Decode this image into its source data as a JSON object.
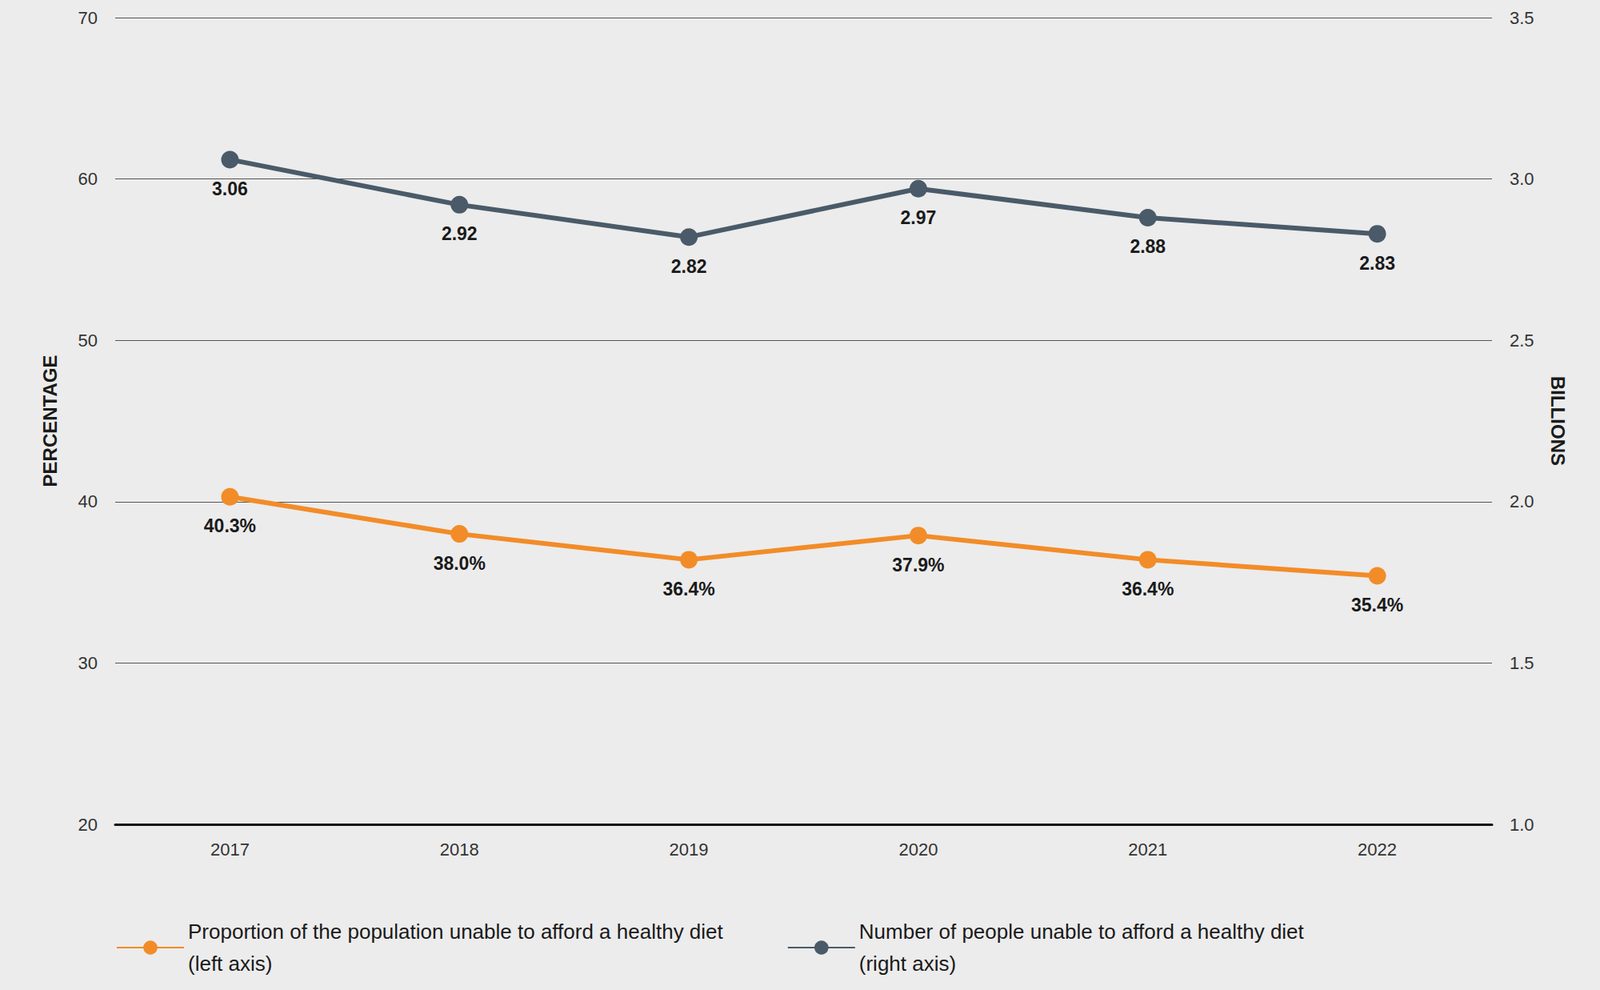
{
  "chart_data": {
    "type": "line",
    "categories": [
      "2017",
      "2018",
      "2019",
      "2020",
      "2021",
      "2022"
    ],
    "y_label": "PERCENTAGE",
    "y2_label": "BILLIONS",
    "ylim": [
      20,
      70
    ],
    "yticks": [
      20,
      30,
      40,
      50,
      60,
      70
    ],
    "y2lim": [
      1.0,
      3.5
    ],
    "y2ticks": [
      {
        "value": 1,
        "label": "1.0"
      },
      1.5,
      {
        "value": 2,
        "label": "2.0"
      },
      2.5,
      {
        "value": 3,
        "label": "3.0"
      },
      3.5
    ],
    "grid": true,
    "legend": "bottom",
    "data_labels": true,
    "series": [
      {
        "name": "Proportion of the population unable to afford a healthy diet\n(left axis)",
        "color": "#f28c28",
        "marker": "circle",
        "values": [
          40.3,
          38.0,
          36.4,
          37.9,
          36.4,
          35.4
        ],
        "value_labels": [
          "40.3%",
          "38.0%",
          "36.4%",
          "37.9%",
          "36.4%",
          "35.4%"
        ]
      },
      {
        "name": "Number of people unable to afford a healthy diet\n(right axis)",
        "color": "#4a5a68",
        "marker": "circle",
        "axis": "y2",
        "values": [
          3.06,
          2.92,
          2.82,
          2.97,
          2.88,
          2.83
        ]
      }
    ]
  }
}
